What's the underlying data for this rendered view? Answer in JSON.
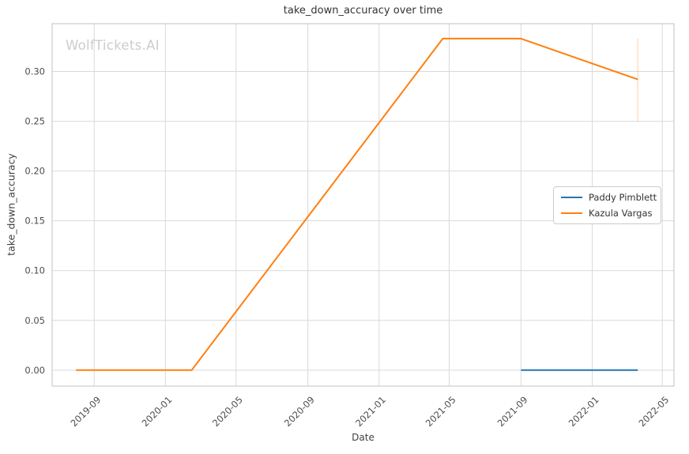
{
  "watermark": "WolfTickets.AI",
  "colors": {
    "background": "#ffffff",
    "grid": "#d9d9d9",
    "spine": "#cccccc",
    "watermark": "#cccccc",
    "blue_series": "#1f77b4",
    "orange_series": "#ff7f0e"
  },
  "chart_data": {
    "type": "line",
    "title": "take_down_accuracy over time",
    "xlabel": "Date",
    "ylabel": "take_down_accuracy",
    "grid": true,
    "legend_position": "center right",
    "x_ticks": [
      "2019-09",
      "2020-01",
      "2020-05",
      "2020-09",
      "2021-01",
      "2021-05",
      "2021-09",
      "2022-01",
      "2022-05"
    ],
    "y_ticks": [
      0.0,
      0.05,
      0.1,
      0.15,
      0.2,
      0.25,
      0.3
    ],
    "xlim": [
      "2019-06-21",
      "2022-05-21"
    ],
    "ylim": [
      -0.016,
      0.348
    ],
    "series": [
      {
        "name": "Paddy Pimblett",
        "color": "#1f77b4",
        "points": [
          [
            "2021-09",
            0.0
          ],
          [
            "2022-03-20",
            0.0
          ]
        ]
      },
      {
        "name": "Kazula Vargas",
        "color": "#ff7f0e",
        "points": [
          [
            "2019-08",
            0.0
          ],
          [
            "2020-02-15",
            0.0
          ],
          [
            "2021-04-20",
            0.333
          ],
          [
            "2021-09",
            0.333
          ],
          [
            "2022-03-20",
            0.292
          ]
        ]
      }
    ],
    "annotations": [
      {
        "type": "vline",
        "x": "2022-03-20",
        "y_from": 0.25,
        "y_to": 0.333,
        "color": "#ff7f0e",
        "opacity": 0.3
      }
    ]
  }
}
